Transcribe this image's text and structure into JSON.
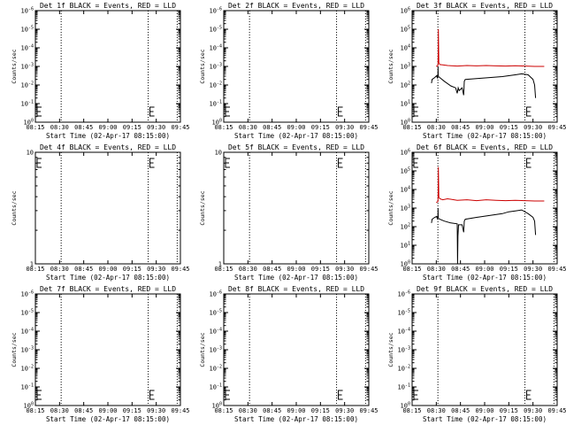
{
  "figure": {
    "background": "#ffffff",
    "axis_color": "#000000",
    "series_colors": {
      "events": "#000000",
      "lld": "#cc0000"
    }
  },
  "chart_data": [
    {
      "type": "line",
      "id": "det1f",
      "title": "Det 1f BLACK = Events, RED = LLD",
      "xlabel": "Start Time (02-Apr-17 08:15:00)",
      "ylabel": "Counts/sec",
      "x_ticks": [
        "08:15",
        "08:30",
        "08:45",
        "09:00",
        "09:15",
        "09:30",
        "09:45"
      ],
      "xlim": [
        0,
        45
      ],
      "yscale": "log",
      "ylim_exp": [
        0,
        6
      ],
      "y_ticks": [
        "10^0",
        "10^-1",
        "10^-2",
        "10^-3",
        "10^-4",
        "10^-5",
        "10^-6"
      ],
      "dotted_lines_x": [
        8,
        35,
        44
      ],
      "series": []
    },
    {
      "type": "line",
      "id": "det2f",
      "title": "Det 2f BLACK = Events, RED = LLD",
      "xlabel": "Start Time (02-Apr-17 08:15:00)",
      "ylabel": "Counts/sec",
      "x_ticks": [
        "08:15",
        "08:30",
        "08:45",
        "09:00",
        "09:15",
        "09:30",
        "09:45"
      ],
      "xlim": [
        0,
        45
      ],
      "yscale": "log",
      "ylim_exp": [
        0,
        6
      ],
      "y_ticks": [
        "10^0",
        "10^-1",
        "10^-2",
        "10^-3",
        "10^-4",
        "10^-5",
        "10^-6"
      ],
      "dotted_lines_x": [
        8,
        35,
        44
      ],
      "series": []
    },
    {
      "type": "line",
      "id": "det3f",
      "title": "Det 3f BLACK = Events, RED = LLD",
      "xlabel": "Start Time (02-Apr-17 08:15:00)",
      "ylabel": "Counts/sec",
      "x_ticks": [
        "08:15",
        "08:30",
        "08:45",
        "09:00",
        "09:15",
        "09:30",
        "09:45"
      ],
      "xlim": [
        0,
        45
      ],
      "yscale": "log",
      "ylim_exp": [
        0,
        6
      ],
      "y_ticks": [
        "10^0",
        "10^1",
        "10^2",
        "10^3",
        "10^4",
        "10^5",
        "10^6"
      ],
      "dotted_lines_x": [
        8,
        35,
        44
      ],
      "series": [
        {
          "key": "lld",
          "x": [
            7.5,
            8.0,
            8.1,
            8.15,
            8.3,
            8.6,
            9.5,
            11,
            14,
            17,
            20,
            23,
            26,
            29,
            32,
            35,
            38,
            41
          ],
          "y": [
            3.0,
            3.05,
            3.7,
            5.0,
            3.2,
            3.1,
            3.08,
            3.05,
            3.02,
            3.05,
            3.03,
            3.05,
            3.03,
            3.02,
            3.04,
            3.02,
            3.0,
            3.0
          ]
        },
        {
          "key": "events",
          "x": [
            6.0,
            6.2,
            7.0,
            7.6,
            7.8,
            8.0,
            8.05,
            8.1,
            8.2,
            8.6,
            10,
            12,
            13.5,
            14.0,
            14.3,
            14.6,
            15.5,
            16.0,
            16.2,
            16.5,
            20,
            24,
            28,
            30,
            32,
            34,
            36,
            37.5,
            38.0,
            38.3
          ],
          "y": [
            2.1,
            2.3,
            2.4,
            2.5,
            2.4,
            2.6,
            3.0,
            2.5,
            2.45,
            2.4,
            2.2,
            1.95,
            1.85,
            1.55,
            1.85,
            1.7,
            1.85,
            1.45,
            2.2,
            2.3,
            2.35,
            2.4,
            2.45,
            2.5,
            2.55,
            2.6,
            2.55,
            2.3,
            2.0,
            1.3
          ]
        }
      ]
    },
    {
      "type": "line",
      "id": "det4f",
      "title": "Det 4f BLACK = Events, RED = LLD",
      "xlabel": "Start Time (02-Apr-17 08:15:00)",
      "ylabel": "Counts/sec",
      "x_ticks": [
        "08:15",
        "08:30",
        "08:45",
        "09:00",
        "09:15",
        "09:30",
        "09:45"
      ],
      "xlim": [
        0,
        45
      ],
      "yscale": "log",
      "ylim_exp": [
        0,
        1
      ],
      "y_ticks": [
        "1",
        "10"
      ],
      "dotted_lines_x": [
        8,
        35,
        44
      ],
      "series": []
    },
    {
      "type": "line",
      "id": "det5f",
      "title": "Det 5f BLACK = Events, RED = LLD",
      "xlabel": "Start Time (02-Apr-17 08:15:00)",
      "ylabel": "Counts/sec",
      "x_ticks": [
        "08:15",
        "08:30",
        "08:45",
        "09:00",
        "09:15",
        "09:30",
        "09:45"
      ],
      "xlim": [
        0,
        45
      ],
      "yscale": "log",
      "ylim_exp": [
        0,
        1
      ],
      "y_ticks": [
        "1",
        "10"
      ],
      "dotted_lines_x": [
        8,
        35,
        44
      ],
      "series": []
    },
    {
      "type": "line",
      "id": "det6f",
      "title": "Det 6f BLACK = Events, RED = LLD",
      "xlabel": "Start Time (02-Apr-17 08:15:00)",
      "ylabel": "Counts/sec",
      "x_ticks": [
        "08:15",
        "08:30",
        "08:45",
        "09:00",
        "09:15",
        "09:30",
        "09:45"
      ],
      "xlim": [
        0,
        45
      ],
      "yscale": "log",
      "ylim_exp": [
        0,
        6
      ],
      "y_ticks": [
        "10^0",
        "10^1",
        "10^2",
        "10^3",
        "10^4",
        "10^5",
        "10^6"
      ],
      "dotted_lines_x": [
        8,
        35,
        44
      ],
      "series": [
        {
          "key": "lld",
          "x": [
            7.5,
            8.0,
            8.1,
            8.15,
            8.3,
            8.6,
            9.5,
            11,
            14,
            17,
            20,
            23,
            26,
            29,
            32,
            35,
            38,
            41
          ],
          "y": [
            3.3,
            3.35,
            4.0,
            5.2,
            3.6,
            3.5,
            3.45,
            3.5,
            3.42,
            3.45,
            3.4,
            3.45,
            3.42,
            3.4,
            3.42,
            3.4,
            3.38,
            3.38
          ]
        },
        {
          "key": "events",
          "x": [
            6.0,
            6.2,
            7.0,
            7.6,
            7.8,
            8.0,
            8.05,
            8.1,
            8.2,
            8.6,
            10,
            12,
            14,
            14.1,
            14.2,
            14.4,
            15.5,
            16.0,
            16.2,
            16.5,
            20,
            24,
            28,
            30,
            32,
            34,
            36,
            37.5,
            38.0,
            38.3
          ],
          "y": [
            2.2,
            2.4,
            2.5,
            2.55,
            2.45,
            2.6,
            3.0,
            2.5,
            2.45,
            2.4,
            2.3,
            2.2,
            2.15,
            0.0,
            1.5,
            2.1,
            2.1,
            1.7,
            2.3,
            2.4,
            2.5,
            2.6,
            2.7,
            2.8,
            2.85,
            2.9,
            2.7,
            2.5,
            2.3,
            1.55
          ]
        }
      ]
    },
    {
      "type": "line",
      "id": "det7f",
      "title": "Det 7f BLACK = Events, RED = LLD",
      "xlabel": "Start Time (02-Apr-17 08:15:00)",
      "ylabel": "Counts/sec",
      "x_ticks": [
        "08:15",
        "08:30",
        "08:45",
        "09:00",
        "09:15",
        "09:30",
        "09:45"
      ],
      "xlim": [
        0,
        45
      ],
      "yscale": "log",
      "ylim_exp": [
        0,
        6
      ],
      "y_ticks": [
        "10^0",
        "10^-1",
        "10^-2",
        "10^-3",
        "10^-4",
        "10^-5",
        "10^-6"
      ],
      "dotted_lines_x": [
        8,
        35,
        44
      ],
      "series": []
    },
    {
      "type": "line",
      "id": "det8f",
      "title": "Det 8f BLACK = Events, RED = LLD",
      "xlabel": "Start Time (02-Apr-17 08:15:00)",
      "ylabel": "Counts/sec",
      "x_ticks": [
        "08:15",
        "08:30",
        "08:45",
        "09:00",
        "09:15",
        "09:30",
        "09:45"
      ],
      "xlim": [
        0,
        45
      ],
      "yscale": "log",
      "ylim_exp": [
        0,
        6
      ],
      "y_ticks": [
        "10^0",
        "10^-1",
        "10^-2",
        "10^-3",
        "10^-4",
        "10^-5",
        "10^-6"
      ],
      "dotted_lines_x": [
        8,
        35,
        44
      ],
      "series": []
    },
    {
      "type": "line",
      "id": "det9f",
      "title": "Det 9f BLACK = Events, RED = LLD",
      "xlabel": "Start Time (02-Apr-17 08:15:00)",
      "ylabel": "Counts/sec",
      "x_ticks": [
        "08:15",
        "08:30",
        "08:45",
        "09:00",
        "09:15",
        "09:30",
        "09:45"
      ],
      "xlim": [
        0,
        45
      ],
      "yscale": "log",
      "ylim_exp": [
        0,
        6
      ],
      "y_ticks": [
        "10^0",
        "10^-1",
        "10^-2",
        "10^-3",
        "10^-4",
        "10^-5",
        "10^-6"
      ],
      "dotted_lines_x": [
        8,
        35,
        44
      ],
      "series": []
    }
  ]
}
